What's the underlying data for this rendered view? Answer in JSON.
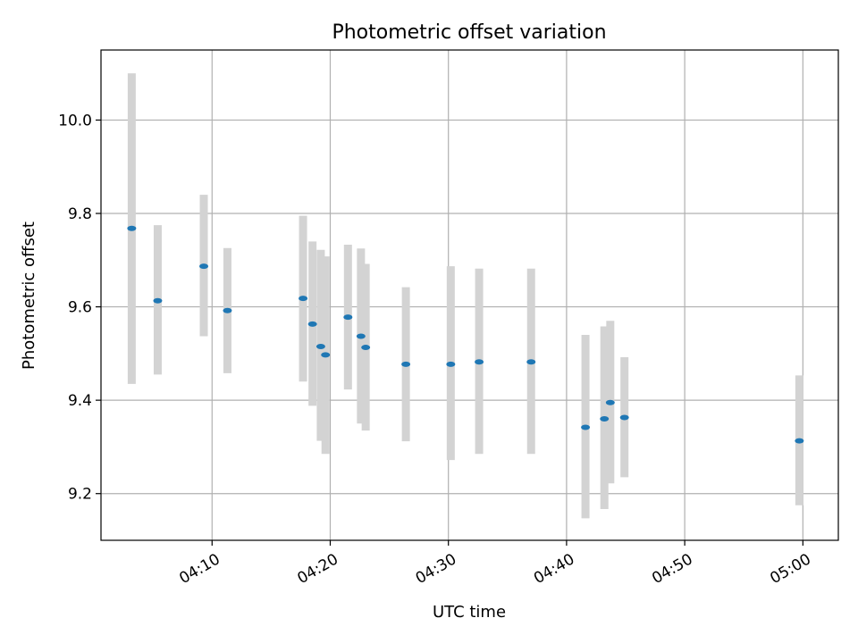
{
  "chart_data": {
    "type": "scatter",
    "title": "Photometric offset variation",
    "xlabel": "UTC time",
    "ylabel": "Photometric offset",
    "x_unit": "minutes after 04:00 UTC",
    "xlim": [
      0.6,
      63.0
    ],
    "ylim": [
      9.1,
      10.15
    ],
    "x_ticks": [
      {
        "value": 10,
        "label": "04:10"
      },
      {
        "value": 20,
        "label": "04:20"
      },
      {
        "value": 30,
        "label": "04:30"
      },
      {
        "value": 40,
        "label": "04:40"
      },
      {
        "value": 50,
        "label": "04:50"
      },
      {
        "value": 60,
        "label": "05:00"
      }
    ],
    "y_ticks": [
      {
        "value": 9.2,
        "label": "9.2"
      },
      {
        "value": 9.4,
        "label": "9.4"
      },
      {
        "value": 9.6,
        "label": "9.6"
      },
      {
        "value": 9.8,
        "label": "9.8"
      },
      {
        "value": 10.0,
        "label": "10.0"
      }
    ],
    "grid": true,
    "marker_color": "#1f77b4",
    "errorbar_color": "#d3d3d3",
    "points": [
      {
        "x": 3.2,
        "y": 9.768,
        "ymin": 9.435,
        "ymax": 10.1
      },
      {
        "x": 5.4,
        "y": 9.613,
        "ymin": 9.455,
        "ymax": 9.775
      },
      {
        "x": 9.3,
        "y": 9.687,
        "ymin": 9.537,
        "ymax": 9.84
      },
      {
        "x": 11.3,
        "y": 9.592,
        "ymin": 9.458,
        "ymax": 9.726
      },
      {
        "x": 17.7,
        "y": 9.618,
        "ymin": 9.44,
        "ymax": 9.795
      },
      {
        "x": 18.5,
        "y": 9.563,
        "ymin": 9.388,
        "ymax": 9.74
      },
      {
        "x": 19.2,
        "y": 9.515,
        "ymin": 9.313,
        "ymax": 9.722
      },
      {
        "x": 19.6,
        "y": 9.497,
        "ymin": 9.285,
        "ymax": 9.708
      },
      {
        "x": 21.5,
        "y": 9.578,
        "ymin": 9.423,
        "ymax": 9.733
      },
      {
        "x": 22.6,
        "y": 9.537,
        "ymin": 9.35,
        "ymax": 9.725
      },
      {
        "x": 23.0,
        "y": 9.513,
        "ymin": 9.335,
        "ymax": 9.692
      },
      {
        "x": 26.4,
        "y": 9.477,
        "ymin": 9.312,
        "ymax": 9.642
      },
      {
        "x": 30.2,
        "y": 9.477,
        "ymin": 9.272,
        "ymax": 9.687
      },
      {
        "x": 32.6,
        "y": 9.482,
        "ymin": 9.285,
        "ymax": 9.682
      },
      {
        "x": 37.0,
        "y": 9.482,
        "ymin": 9.285,
        "ymax": 9.682
      },
      {
        "x": 41.6,
        "y": 9.342,
        "ymin": 9.147,
        "ymax": 9.54
      },
      {
        "x": 43.2,
        "y": 9.36,
        "ymin": 9.167,
        "ymax": 9.558
      },
      {
        "x": 43.7,
        "y": 9.395,
        "ymin": 9.222,
        "ymax": 9.57
      },
      {
        "x": 44.9,
        "y": 9.363,
        "ymin": 9.235,
        "ymax": 9.492
      },
      {
        "x": 59.7,
        "y": 9.313,
        "ymin": 9.175,
        "ymax": 9.453
      }
    ]
  }
}
